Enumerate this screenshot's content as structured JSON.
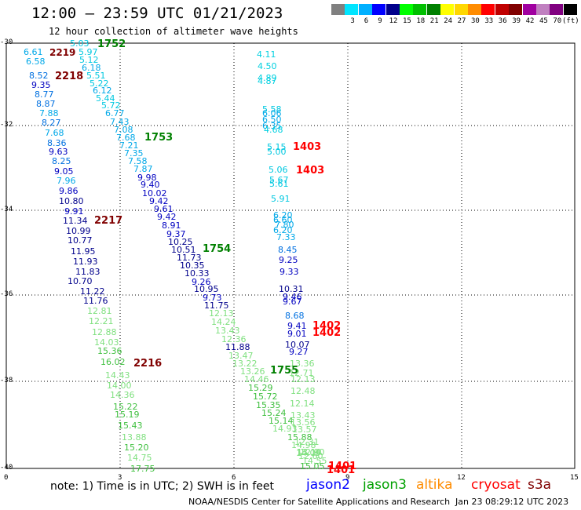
{
  "header": {
    "title": "12:00 – 23:59 UTC 01/21/2023",
    "subtitle": "12 hour collection of altimeter wave heights"
  },
  "legend": {
    "unit": "(ft)",
    "items": [
      {
        "color": "#808080",
        "label": ""
      },
      {
        "color": "#00e5ff",
        "label": "3"
      },
      {
        "color": "#00b0ff",
        "label": "6"
      },
      {
        "color": "#0000ff",
        "label": "9"
      },
      {
        "color": "#00008b",
        "label": "12"
      },
      {
        "color": "#00ff00",
        "label": "15"
      },
      {
        "color": "#00c000",
        "label": "18"
      },
      {
        "color": "#008000",
        "label": "21"
      },
      {
        "color": "#ffff00",
        "label": "24"
      },
      {
        "color": "#ffd700",
        "label": "27"
      },
      {
        "color": "#ff8c00",
        "label": "30"
      },
      {
        "color": "#ff0000",
        "label": "33"
      },
      {
        "color": "#c00000",
        "label": "36"
      },
      {
        "color": "#800000",
        "label": "39"
      },
      {
        "color": "#a000a0",
        "label": "42"
      },
      {
        "color": "#c080c0",
        "label": "45"
      },
      {
        "color": "#800080",
        "label": "70"
      },
      {
        "color": "#000000",
        "label": ""
      }
    ]
  },
  "axes": {
    "y_ticks": [
      "-30",
      "-32",
      "-34",
      "-36",
      "-38",
      "-40"
    ],
    "x_ticks": [
      "0",
      "3",
      "6",
      "9",
      "12",
      "15"
    ]
  },
  "note": "note:  1) Time is in UTC;  2) SWH is in feet",
  "satellites": [
    {
      "name": "jason2",
      "color": "#0000ff"
    },
    {
      "name": "jason3",
      "color": "#00a000"
    },
    {
      "name": "altika",
      "color": "#ff8c00"
    },
    {
      "name": "cryosat",
      "color": "#ff0000"
    },
    {
      "name": "s3a",
      "color": "#800000"
    }
  ],
  "footer": "NOAA/NESDIS Center for Satellite Applications and Research",
  "footer_date": "Jan 23 08:29:12 UTC 2023",
  "track_labels": [
    {
      "text": "2219",
      "color": "#800000"
    },
    {
      "text": "1752",
      "color": "#008000"
    },
    {
      "text": "2218",
      "color": "#800000"
    },
    {
      "text": "1753",
      "color": "#008000"
    },
    {
      "text": "1403",
      "color": "#ff0000"
    },
    {
      "text": "1403",
      "color": "#ff0000"
    },
    {
      "text": "2217",
      "color": "#800000"
    },
    {
      "text": "1754",
      "color": "#008000"
    },
    {
      "text": "1402",
      "color": "#ff0000"
    },
    {
      "text": "1402",
      "color": "#ff0000"
    },
    {
      "text": "2216",
      "color": "#800000"
    },
    {
      "text": "1755",
      "color": "#008000"
    },
    {
      "text": "1401",
      "color": "#ff0000"
    },
    {
      "text": "1401",
      "color": "#ff0000"
    }
  ],
  "tracks": [
    {
      "name": "track-a",
      "values": [
        {
          "t": "5.03",
          "c": "#00c8e0"
        },
        {
          "t": "6.61",
          "c": "#00a8e8"
        },
        {
          "t": "5.97",
          "c": "#00c8e0"
        },
        {
          "t": "6.58",
          "c": "#00a8e8"
        },
        {
          "t": "5.12",
          "c": "#00c8e0"
        },
        {
          "t": "6.18",
          "c": "#00a8e8"
        },
        {
          "t": "8.52",
          "c": "#0070e0"
        },
        {
          "t": "5.51",
          "c": "#00c8e0"
        },
        {
          "t": "5.22",
          "c": "#00c8e0"
        },
        {
          "t": "9.35",
          "c": "#0000c0"
        },
        {
          "t": "6.12",
          "c": "#00a8e8"
        },
        {
          "t": "8.77",
          "c": "#0070e0"
        },
        {
          "t": "5.44",
          "c": "#00c8e0"
        },
        {
          "t": "8.87",
          "c": "#0070e0"
        },
        {
          "t": "5.72",
          "c": "#00c8e0"
        },
        {
          "t": "7.88",
          "c": "#00a8e8"
        },
        {
          "t": "6.77",
          "c": "#00a8e8"
        },
        {
          "t": "8.27",
          "c": "#0070e0"
        },
        {
          "t": "7.43",
          "c": "#00a8e8"
        },
        {
          "t": "7.68",
          "c": "#00a8e8"
        },
        {
          "t": "7.08",
          "c": "#00a8e8"
        },
        {
          "t": "7.68",
          "c": "#00a8e8"
        },
        {
          "t": "8.36",
          "c": "#0070e0"
        },
        {
          "t": "7.21",
          "c": "#00a8e8"
        },
        {
          "t": "9.63",
          "c": "#0000c0"
        },
        {
          "t": "7.35",
          "c": "#00a8e8"
        },
        {
          "t": "8.25",
          "c": "#0070e0"
        },
        {
          "t": "7.58",
          "c": "#00a8e8"
        },
        {
          "t": "9.05",
          "c": "#0000c0"
        },
        {
          "t": "7.87",
          "c": "#00a8e8"
        },
        {
          "t": "7.96",
          "c": "#00a8e8"
        },
        {
          "t": "9.98",
          "c": "#0000c0"
        },
        {
          "t": "9.40",
          "c": "#0000c0"
        },
        {
          "t": "9.86",
          "c": "#0000c0"
        },
        {
          "t": "10.02",
          "c": "#0000c0"
        },
        {
          "t": "10.80",
          "c": "#00008b"
        },
        {
          "t": "9.42",
          "c": "#0000c0"
        },
        {
          "t": "9.91",
          "c": "#0000c0"
        },
        {
          "t": "9.61",
          "c": "#0000c0"
        },
        {
          "t": "11.34",
          "c": "#00008b"
        },
        {
          "t": "9.42",
          "c": "#0000c0"
        },
        {
          "t": "8.91",
          "c": "#0000c0"
        },
        {
          "t": "10.99",
          "c": "#00008b"
        },
        {
          "t": "9.37",
          "c": "#0000c0"
        },
        {
          "t": "10.77",
          "c": "#00008b"
        },
        {
          "t": "10.25",
          "c": "#00008b"
        },
        {
          "t": "11.95",
          "c": "#00008b"
        },
        {
          "t": "10.51",
          "c": "#00008b"
        },
        {
          "t": "11.73",
          "c": "#00008b"
        },
        {
          "t": "11.93",
          "c": "#00008b"
        },
        {
          "t": "10.35",
          "c": "#00008b"
        },
        {
          "t": "11.83",
          "c": "#00008b"
        },
        {
          "t": "10.33",
          "c": "#00008b"
        },
        {
          "t": "10.70",
          "c": "#00008b"
        },
        {
          "t": "9.26",
          "c": "#0000c0"
        },
        {
          "t": "11.22",
          "c": "#00008b"
        },
        {
          "t": "10.95",
          "c": "#00008b"
        },
        {
          "t": "11.76",
          "c": "#00008b"
        },
        {
          "t": "9.73",
          "c": "#0000c0"
        },
        {
          "t": "11.75",
          "c": "#00008b"
        },
        {
          "t": "12.81",
          "c": "#80e080"
        },
        {
          "t": "12.13",
          "c": "#80e080"
        },
        {
          "t": "12.21",
          "c": "#80e080"
        },
        {
          "t": "14.24",
          "c": "#80e080"
        },
        {
          "t": "12.88",
          "c": "#80e080"
        },
        {
          "t": "13.43",
          "c": "#80e080"
        },
        {
          "t": "14.03",
          "c": "#80e080"
        },
        {
          "t": "12.36",
          "c": "#80e080"
        },
        {
          "t": "15.36",
          "c": "#40c040"
        },
        {
          "t": "11.88",
          "c": "#00008b"
        },
        {
          "t": "16.02",
          "c": "#40c040"
        },
        {
          "t": "13.47",
          "c": "#80e080"
        },
        {
          "t": "13.22",
          "c": "#80e080"
        },
        {
          "t": "14.43",
          "c": "#80e080"
        },
        {
          "t": "13.26",
          "c": "#80e080"
        },
        {
          "t": "14.46",
          "c": "#80e080"
        },
        {
          "t": "14.00",
          "c": "#80e080"
        },
        {
          "t": "15.29",
          "c": "#40c040"
        },
        {
          "t": "14.36",
          "c": "#80e080"
        },
        {
          "t": "15.72",
          "c": "#40c040"
        },
        {
          "t": "15.22",
          "c": "#40c040"
        },
        {
          "t": "15.35",
          "c": "#40c040"
        },
        {
          "t": "15.19",
          "c": "#40c040"
        },
        {
          "t": "15.24",
          "c": "#40c040"
        },
        {
          "t": "15.14",
          "c": "#40c040"
        },
        {
          "t": "15.43",
          "c": "#40c040"
        },
        {
          "t": "14.93",
          "c": "#80e080"
        },
        {
          "t": "15.88",
          "c": "#40c040"
        },
        {
          "t": "13.88",
          "c": "#80e080"
        },
        {
          "t": "14.98",
          "c": "#80e080"
        },
        {
          "t": "15.20",
          "c": "#40c040"
        },
        {
          "t": "14.09",
          "c": "#80e080"
        },
        {
          "t": "14.75",
          "c": "#80e080"
        },
        {
          "t": "14.55",
          "c": "#80e080"
        },
        {
          "t": "17.75",
          "c": "#40c040"
        },
        {
          "t": "15.05",
          "c": "#40c040"
        }
      ]
    },
    {
      "name": "track-b",
      "values": [
        {
          "t": "4.11",
          "c": "#00d0e0"
        },
        {
          "t": "4.50",
          "c": "#00d0e0"
        },
        {
          "t": "4.89",
          "c": "#00d0e0"
        },
        {
          "t": "4.87",
          "c": "#00d0e0"
        },
        {
          "t": "5.58",
          "c": "#00c8e0"
        },
        {
          "t": "6.06",
          "c": "#00a8e8"
        },
        {
          "t": "6.50",
          "c": "#00a8e8"
        },
        {
          "t": "6.35",
          "c": "#00a8e8"
        },
        {
          "t": "4.68",
          "c": "#00d0e0"
        },
        {
          "t": "5.15",
          "c": "#00c8e0"
        },
        {
          "t": "5.00",
          "c": "#00c8e0"
        },
        {
          "t": "5.06",
          "c": "#00c8e0"
        },
        {
          "t": "5.67",
          "c": "#00c8e0"
        },
        {
          "t": "5.61",
          "c": "#00c8e0"
        },
        {
          "t": "5.91",
          "c": "#00c8e0"
        },
        {
          "t": "6.20",
          "c": "#00a8e8"
        },
        {
          "t": "6.60",
          "c": "#00a8e8"
        },
        {
          "t": "7.80",
          "c": "#00a8e8"
        },
        {
          "t": "6.20",
          "c": "#00a8e8"
        },
        {
          "t": "7.33",
          "c": "#00a8e8"
        },
        {
          "t": "8.45",
          "c": "#0070e0"
        },
        {
          "t": "9.25",
          "c": "#0000c0"
        },
        {
          "t": "9.33",
          "c": "#0000c0"
        },
        {
          "t": "10.31",
          "c": "#00008b"
        },
        {
          "t": "9.46",
          "c": "#0000c0"
        },
        {
          "t": "9.67",
          "c": "#0000c0"
        },
        {
          "t": "8.68",
          "c": "#0070e0"
        },
        {
          "t": "9.41",
          "c": "#0000c0"
        },
        {
          "t": "9.01",
          "c": "#0000c0"
        },
        {
          "t": "10.07",
          "c": "#00008b"
        },
        {
          "t": "9.27",
          "c": "#0000c0"
        },
        {
          "t": "13.36",
          "c": "#80e080"
        },
        {
          "t": "12.71",
          "c": "#80e080"
        },
        {
          "t": "12.13",
          "c": "#80e080"
        },
        {
          "t": "12.48",
          "c": "#80e080"
        },
        {
          "t": "12.14",
          "c": "#80e080"
        },
        {
          "t": "13.43",
          "c": "#80e080"
        },
        {
          "t": "13.56",
          "c": "#80e080"
        },
        {
          "t": "13.57",
          "c": "#80e080"
        },
        {
          "t": "12.31",
          "c": "#80e080"
        },
        {
          "t": "12.90",
          "c": "#80e080"
        },
        {
          "t": "13.10",
          "c": "#80e080"
        },
        {
          "t": "12.60",
          "c": "#80e080"
        }
      ]
    }
  ]
}
